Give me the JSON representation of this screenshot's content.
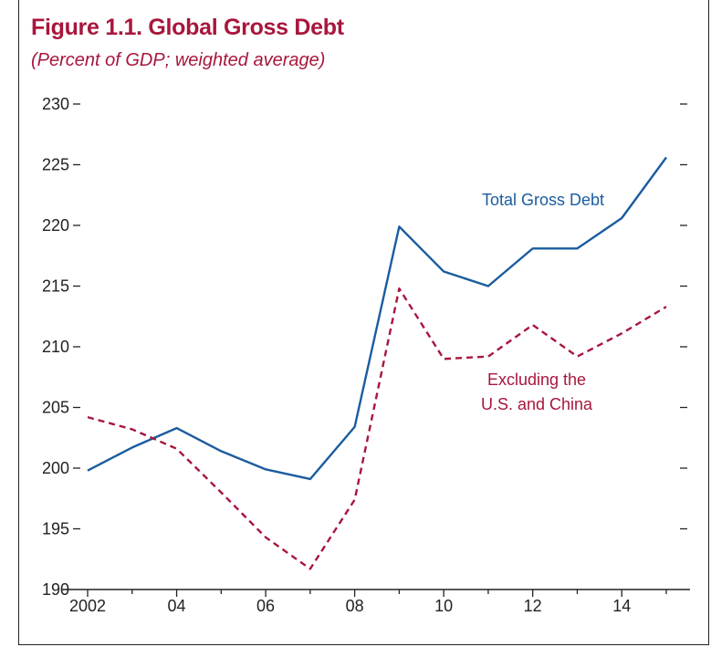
{
  "title": "Figure 1.1. Global Gross Debt",
  "subtitle": "(Percent of GDP; weighted average)",
  "colors": {
    "title": "#a8163c",
    "total": "#1a5c9e",
    "excluding": "#a8163c",
    "axis": "#222222"
  },
  "chart_data": {
    "type": "line",
    "x": [
      2002,
      2003,
      2004,
      2005,
      2006,
      2007,
      2008,
      2009,
      2010,
      2011,
      2012,
      2013,
      2014,
      2015
    ],
    "x_tick_values": [
      2002,
      2004,
      2006,
      2008,
      2010,
      2012,
      2014
    ],
    "x_tick_labels": [
      "2002",
      "04",
      "06",
      "08",
      "10",
      "12",
      "14"
    ],
    "y_ticks": [
      190,
      195,
      200,
      205,
      210,
      215,
      220,
      225,
      230
    ],
    "ylim": [
      190,
      230
    ],
    "xlim": [
      2002,
      2015
    ],
    "grid": false,
    "series": [
      {
        "name": "Total Gross Debt",
        "label_lines": [
          "Total Gross Debt"
        ],
        "style": "solid",
        "color": "#1a5c9e",
        "values": [
          199.8,
          201.7,
          203.3,
          201.4,
          199.9,
          199.1,
          203.4,
          219.9,
          216.2,
          215.0,
          218.1,
          218.1,
          220.6,
          225.6
        ]
      },
      {
        "name": "Excluding the U.S. and China",
        "label_lines": [
          "Excluding the",
          "U.S. and China"
        ],
        "style": "dashed",
        "color": "#a8163c",
        "values": [
          204.2,
          203.2,
          201.6,
          198.0,
          194.3,
          191.7,
          197.4,
          214.8,
          209.0,
          209.2,
          211.8,
          209.2,
          211.1,
          213.3
        ]
      }
    ]
  }
}
